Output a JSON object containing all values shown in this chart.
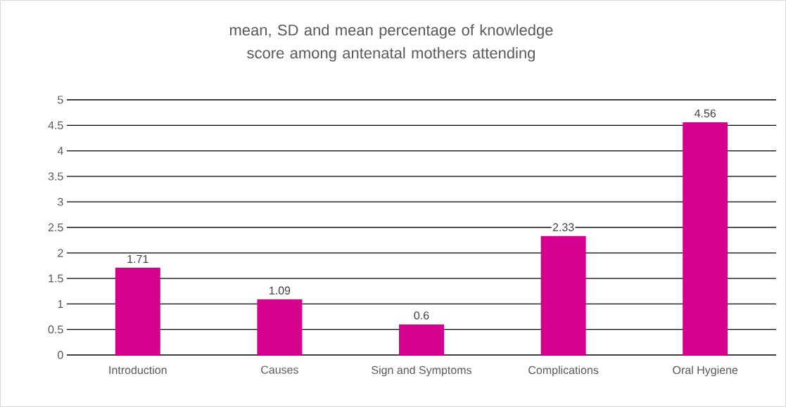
{
  "chart_data": {
    "type": "bar",
    "title": "mean, SD and mean percentage of knowledge score among antenatal mothers attending",
    "categories": [
      "Introduction",
      "Causes",
      "Sign and Symptoms",
      "Complications",
      "Oral Hygiene"
    ],
    "values": [
      1.71,
      1.09,
      0.6,
      2.33,
      4.56
    ],
    "color": "#d6008f",
    "ylim": [
      0,
      5
    ],
    "yticks": [
      0,
      0.5,
      1,
      1.5,
      2,
      2.5,
      3,
      3.5,
      4,
      4.5,
      5
    ],
    "grid": "y",
    "data_labels": true
  }
}
